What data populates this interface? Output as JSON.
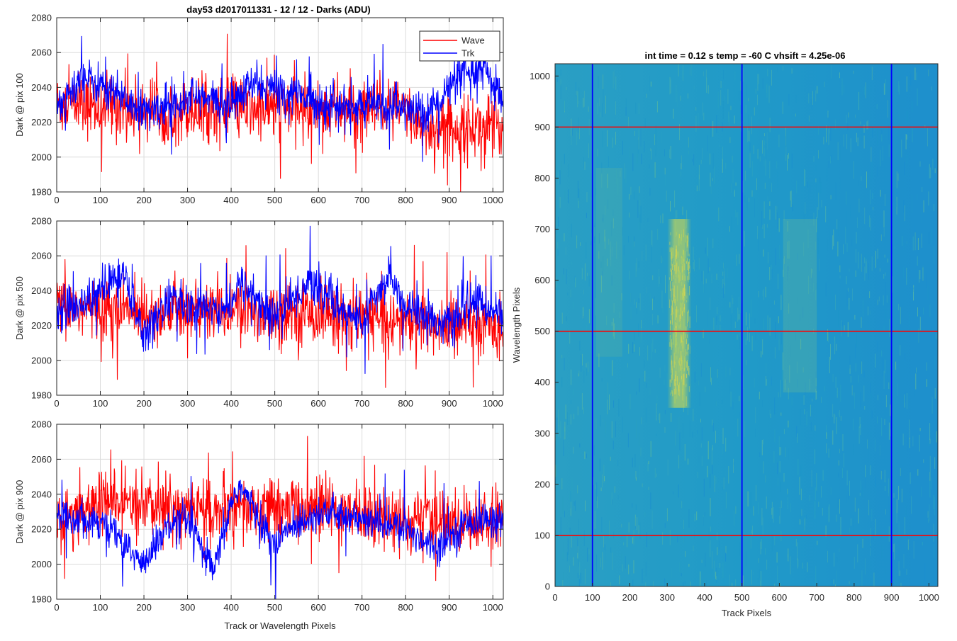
{
  "figure": {
    "title": "day53 d2017011331 - 12 / 12 - Darks (ADU)",
    "shared_xlabel": "Track or Wavelength Pixels"
  },
  "colors": {
    "wave": "#ff0000",
    "trk": "#0000ff",
    "map_base": "#1f97c8"
  },
  "chart_data": [
    {
      "type": "line",
      "ylabel": "Dark @ pix 100",
      "xlim": [
        0,
        1024
      ],
      "ylim": [
        1980,
        2080
      ],
      "xticks": [
        0,
        100,
        200,
        300,
        400,
        500,
        600,
        700,
        800,
        900,
        1000
      ],
      "yticks": [
        1980,
        2000,
        2020,
        2040,
        2060,
        2080
      ],
      "grid": true,
      "legend": "top-right",
      "series": [
        {
          "name": "Wave",
          "color": "#ff0000",
          "mean": 2028,
          "noise": 9,
          "anchors": [
            [
              0,
              2030
            ],
            [
              200,
              2028
            ],
            [
              400,
              2027
            ],
            [
              550,
              2028
            ],
            [
              800,
              2026
            ],
            [
              850,
              2016
            ],
            [
              1024,
              2018
            ]
          ]
        },
        {
          "name": "Trk",
          "color": "#0000ff",
          "mean": 2032,
          "noise": 6,
          "anchors": [
            [
              0,
              2030
            ],
            [
              60,
              2045
            ],
            [
              120,
              2040
            ],
            [
              200,
              2025
            ],
            [
              300,
              2035
            ],
            [
              400,
              2030
            ],
            [
              450,
              2042
            ],
            [
              550,
              2036
            ],
            [
              650,
              2028
            ],
            [
              750,
              2030
            ],
            [
              850,
              2025
            ],
            [
              920,
              2045
            ],
            [
              980,
              2050
            ],
            [
              1024,
              2030
            ]
          ]
        }
      ]
    },
    {
      "type": "line",
      "ylabel": "Dark @ pix 500",
      "xlim": [
        0,
        1024
      ],
      "ylim": [
        1980,
        2080
      ],
      "xticks": [
        0,
        100,
        200,
        300,
        400,
        500,
        600,
        700,
        800,
        900,
        1000
      ],
      "yticks": [
        1980,
        2000,
        2020,
        2040,
        2060,
        2080
      ],
      "grid": true,
      "series": [
        {
          "name": "Wave",
          "color": "#ff0000",
          "mean": 2027,
          "noise": 9,
          "anchors": [
            [
              0,
              2030
            ],
            [
              200,
              2028
            ],
            [
              400,
              2028
            ],
            [
              600,
              2027
            ],
            [
              800,
              2022
            ],
            [
              1024,
              2018
            ]
          ]
        },
        {
          "name": "Trk",
          "color": "#0000ff",
          "mean": 2030,
          "noise": 6,
          "anchors": [
            [
              0,
              2028
            ],
            [
              80,
              2035
            ],
            [
              150,
              2050
            ],
            [
              200,
              2015
            ],
            [
              260,
              2035
            ],
            [
              300,
              2030
            ],
            [
              400,
              2030
            ],
            [
              420,
              2045
            ],
            [
              500,
              2025
            ],
            [
              580,
              2045
            ],
            [
              650,
              2030
            ],
            [
              700,
              2022
            ],
            [
              770,
              2050
            ],
            [
              800,
              2030
            ],
            [
              900,
              2020
            ],
            [
              960,
              2035
            ],
            [
              1024,
              2025
            ]
          ]
        }
      ]
    },
    {
      "type": "line",
      "ylabel": "Dark @ pix 900",
      "xlabel": "Track or Wavelength Pixels",
      "xlim": [
        0,
        1024
      ],
      "ylim": [
        1980,
        2080
      ],
      "xticks": [
        0,
        100,
        200,
        300,
        400,
        500,
        600,
        700,
        800,
        900,
        1000
      ],
      "yticks": [
        1980,
        2000,
        2020,
        2040,
        2060,
        2080
      ],
      "grid": true,
      "series": [
        {
          "name": "Wave",
          "color": "#ff0000",
          "mean": 2030,
          "noise": 9,
          "anchors": [
            [
              0,
              2025
            ],
            [
              100,
              2035
            ],
            [
              250,
              2032
            ],
            [
              400,
              2030
            ],
            [
              600,
              2032
            ],
            [
              800,
              2025
            ],
            [
              1024,
              2025
            ]
          ]
        },
        {
          "name": "Trk",
          "color": "#0000ff",
          "mean": 2025,
          "noise": 5,
          "anchors": [
            [
              0,
              2028
            ],
            [
              100,
              2025
            ],
            [
              140,
              2015
            ],
            [
              200,
              2000
            ],
            [
              250,
              2020
            ],
            [
              300,
              2025
            ],
            [
              360,
              1995
            ],
            [
              400,
              2035
            ],
            [
              420,
              2045
            ],
            [
              500,
              2010
            ],
            [
              530,
              2020
            ],
            [
              600,
              2030
            ],
            [
              700,
              2025
            ],
            [
              800,
              2020
            ],
            [
              870,
              2010
            ],
            [
              950,
              2025
            ],
            [
              1024,
              2025
            ]
          ]
        }
      ]
    },
    {
      "type": "heatmap",
      "title": "int time = 0.12 s    temp = -60 C    vhsift = 4.25e-06",
      "xlabel": "Track Pixels",
      "ylabel": "Wavelength Pixels",
      "xlim": [
        0,
        1024
      ],
      "ylim": [
        0,
        1024
      ],
      "xticks": [
        0,
        100,
        200,
        300,
        400,
        500,
        600,
        700,
        800,
        900,
        1000
      ],
      "yticks": [
        0,
        100,
        200,
        300,
        400,
        500,
        600,
        700,
        800,
        900,
        1000
      ],
      "hlines": [
        100,
        500,
        900
      ],
      "hline_color": "#ff0000",
      "vlines": [
        100,
        500,
        900
      ],
      "vline_color": "#0000ff",
      "bright_band": {
        "x": [
          300,
          365
        ],
        "y": [
          350,
          720
        ]
      }
    }
  ]
}
